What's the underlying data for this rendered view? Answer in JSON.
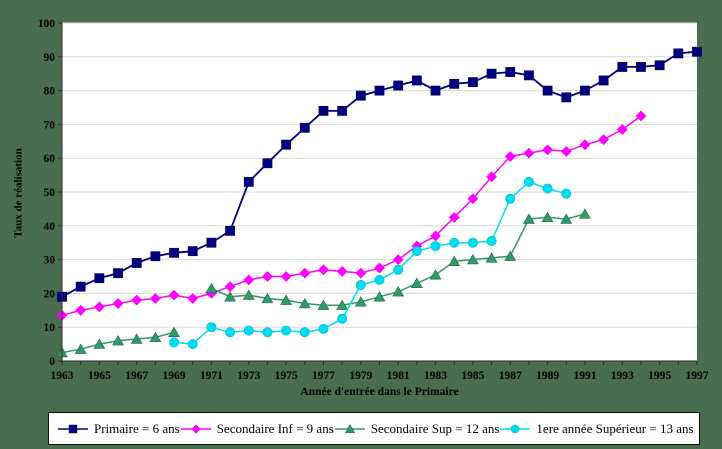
{
  "chart": {
    "colors": {
      "background": "#496E4F",
      "plot_bg": "#FFFFFF",
      "grid": "#D9D9D9",
      "axis": "#2B2B2B",
      "text": "#000000"
    }
  },
  "chart_data": {
    "type": "line",
    "title": "",
    "xlabel": "Année d'entrée dans le Primaire",
    "ylabel": "Taux de réalisation",
    "ylim": [
      0,
      100
    ],
    "grid": true,
    "legend_position": "bottom",
    "x_start": 1963,
    "x_end": 1997,
    "x_tick_labels": [
      1963,
      1965,
      1967,
      1969,
      1971,
      1973,
      1975,
      1977,
      1979,
      1981,
      1983,
      1985,
      1987,
      1989,
      1991,
      1993,
      1995,
      1997
    ],
    "y_ticks": [
      0,
      10,
      20,
      30,
      40,
      50,
      60,
      70,
      80,
      90,
      100
    ],
    "series": [
      {
        "name": "primaire",
        "label": "Primaire = 6 ans",
        "color": "#000080",
        "marker": "square",
        "start_year": 1963,
        "values": [
          19,
          22,
          24.5,
          26,
          29,
          31,
          32,
          32.5,
          35,
          38.5,
          53,
          58.5,
          64,
          69,
          74,
          74,
          78.5,
          80,
          81.5,
          83,
          80,
          82,
          82.5,
          85,
          85.5,
          84.5,
          80,
          78,
          80,
          83,
          87,
          87,
          87.5,
          91,
          91.5
        ]
      },
      {
        "name": "secondaire-inf",
        "label": "Secondaire Inf = 9 ans",
        "color": "#FF00FF",
        "marker": "diamond",
        "start_year": 1963,
        "values": [
          13.5,
          15,
          16,
          17,
          18,
          18.5,
          19.5,
          18.5,
          20,
          22,
          24,
          25,
          25,
          26,
          27,
          26.5,
          26,
          27.5,
          30,
          34,
          37,
          42.5,
          48,
          54.5,
          60.5,
          61.5,
          62.5,
          62,
          64,
          65.5,
          68.5,
          72.5
        ]
      },
      {
        "name": "secondaire-sup",
        "label": "Secondaire Sup = 12 ans",
        "color": "#339966",
        "marker": "triangle",
        "start_year": 1963,
        "values": [
          2.5,
          3.5,
          5,
          6,
          6.5,
          7,
          8.5,
          null,
          21.5,
          19,
          19.5,
          18.5,
          18,
          17,
          16.5,
          16.5,
          17.5,
          19,
          20.5,
          23,
          25.5,
          29.5,
          30,
          30.5,
          31,
          42,
          42.5,
          42,
          43.5
        ]
      },
      {
        "name": "superieur-1ere-annee",
        "label": "1ere année Supérieur  = 13 ans",
        "color": "#00DCEF",
        "marker": "circle",
        "start_year": 1969,
        "values": [
          5.5,
          5,
          10,
          8.5,
          9,
          8.5,
          9,
          8.5,
          9.5,
          12.5,
          22.5,
          24,
          27,
          32.5,
          34,
          35,
          35,
          35.5,
          48,
          53,
          51,
          49.5
        ]
      }
    ]
  }
}
